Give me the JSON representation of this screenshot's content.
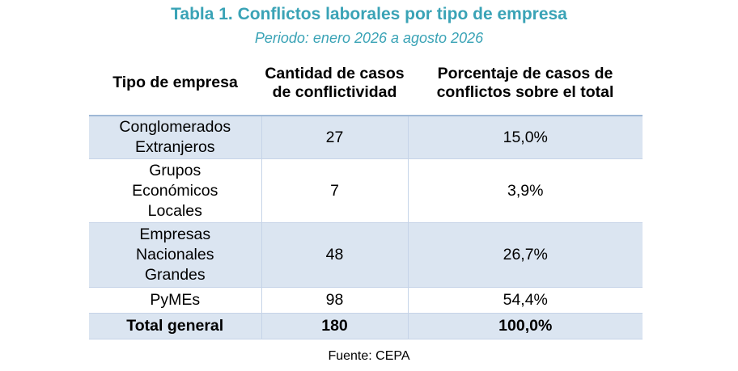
{
  "title": "Tabla 1. Conflictos laborales por tipo de empresa",
  "subtitle": "Periodo: enero 2026 a agosto 2026",
  "table": {
    "headers": [
      "Tipo de empresa",
      "Cantidad de casos de conflictividad",
      "Porcentaje de casos de conflictos sobre el total"
    ],
    "rows": [
      {
        "tipo": "Conglomerados Extranjeros",
        "cantidad": "27",
        "porcentaje": "15,0%"
      },
      {
        "tipo": "Grupos Económicos Locales",
        "cantidad": "7",
        "porcentaje": "3,9%"
      },
      {
        "tipo": "Empresas Nacionales Grandes",
        "cantidad": "48",
        "porcentaje": "26,7%"
      },
      {
        "tipo": "PyMEs",
        "cantidad": "98",
        "porcentaje": "54,4%"
      }
    ],
    "total": {
      "tipo": "Total general",
      "cantidad": "180",
      "porcentaje": "100,0%"
    }
  },
  "source": "Fuente: CEPA",
  "colors": {
    "title": "#3aa3b6",
    "row_shading": "#dbe5f1",
    "rule": "#9fb8d6"
  }
}
